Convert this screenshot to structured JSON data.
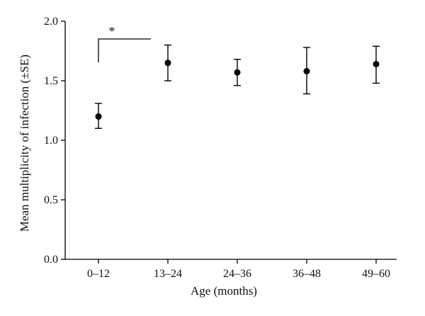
{
  "chart_data": {
    "type": "scatter",
    "title": "",
    "xlabel": "Age (months)",
    "ylabel": "Mean multiplicity of infection (±SE)",
    "categories": [
      "0–12",
      "13–24",
      "24–36",
      "36–48",
      "49–60"
    ],
    "series": [
      {
        "values": [
          1.2,
          1.65,
          1.57,
          1.58,
          1.64
        ],
        "error_low": [
          1.1,
          1.5,
          1.46,
          1.39,
          1.48
        ],
        "error_high": [
          1.31,
          1.8,
          1.68,
          1.78,
          1.79
        ]
      }
    ],
    "ylim": [
      0,
      2.0
    ],
    "yticks": [
      0.0,
      0.5,
      1.0,
      1.5,
      2.0
    ],
    "ytick_labels": [
      "0.0",
      "0.5",
      "1.0",
      "1.5",
      "2.0"
    ],
    "grid": false,
    "annotations": [
      {
        "text": "*",
        "from_category": "0–12",
        "to_category": "13–24"
      }
    ]
  }
}
